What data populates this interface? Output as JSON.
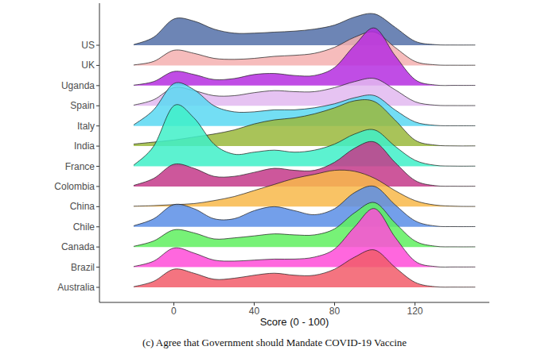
{
  "chart_data": {
    "type": "ridgeline",
    "title": "(c) Agree that Government should Mandate COVID-19 Vaccine",
    "x_label": "Score (0 - 100)",
    "x": [
      -20,
      -10,
      0,
      10,
      20,
      30,
      40,
      50,
      60,
      70,
      80,
      90,
      100,
      110,
      120,
      130,
      140,
      150
    ],
    "xlim": [
      -37,
      157
    ],
    "xticks": [
      0,
      40,
      80,
      120
    ],
    "series": [
      {
        "name": "US",
        "color": "#5470a8",
        "values": [
          0.03,
          0.4,
          1.3,
          1.2,
          0.8,
          0.6,
          0.6,
          0.65,
          0.7,
          0.8,
          1.0,
          1.4,
          1.55,
          0.9,
          0.2,
          0.03,
          0.01,
          0.01
        ]
      },
      {
        "name": "UK",
        "color": "#f5b0b0",
        "values": [
          0.02,
          0.2,
          0.75,
          0.6,
          0.35,
          0.3,
          0.35,
          0.45,
          0.5,
          0.6,
          0.9,
          1.4,
          1.65,
          0.9,
          0.2,
          0.03,
          0.01,
          0.01
        ]
      },
      {
        "name": "Uganda",
        "color": "#b52ee0",
        "values": [
          0.02,
          0.2,
          0.7,
          0.55,
          0.3,
          0.35,
          0.55,
          0.6,
          0.5,
          0.5,
          0.9,
          2.0,
          2.85,
          1.5,
          0.3,
          0.03,
          0.01,
          0.01
        ]
      },
      {
        "name": "Spain",
        "color": "#e2b8f0",
        "values": [
          0.03,
          0.3,
          0.9,
          0.75,
          0.5,
          0.5,
          0.65,
          0.75,
          0.7,
          0.7,
          0.9,
          1.2,
          1.35,
          0.8,
          0.2,
          0.03,
          0.01,
          0.01
        ]
      },
      {
        "name": "Italy",
        "color": "#5ad8f2",
        "values": [
          0.05,
          0.8,
          2.1,
          1.8,
          1.0,
          0.7,
          0.7,
          0.8,
          0.8,
          0.9,
          1.1,
          1.4,
          1.5,
          0.8,
          0.2,
          0.03,
          0.01,
          0.01
        ]
      },
      {
        "name": "India",
        "color": "#9ab83c",
        "values": [
          0.1,
          0.2,
          0.3,
          0.45,
          0.6,
          0.8,
          1.1,
          1.3,
          1.4,
          1.6,
          1.9,
          2.25,
          2.2,
          1.3,
          0.3,
          0.05,
          0.01,
          0.01
        ]
      },
      {
        "name": "France",
        "color": "#3ff0c8",
        "values": [
          0.05,
          1.0,
          3.0,
          2.4,
          1.1,
          0.6,
          0.7,
          0.8,
          0.7,
          0.8,
          1.1,
          1.6,
          1.8,
          1.0,
          0.3,
          0.05,
          0.01,
          0.01
        ]
      },
      {
        "name": "Colombia",
        "color": "#c43a8a",
        "values": [
          0.05,
          0.4,
          1.1,
          0.9,
          0.5,
          0.5,
          0.7,
          0.9,
          0.8,
          0.8,
          1.2,
          1.9,
          2.2,
          1.2,
          0.3,
          0.04,
          0.01,
          0.01
        ]
      },
      {
        "name": "China",
        "color": "#f8b84a",
        "values": [
          0.02,
          0.05,
          0.1,
          0.15,
          0.3,
          0.5,
          0.8,
          1.1,
          1.4,
          1.6,
          1.8,
          1.75,
          1.4,
          0.8,
          0.3,
          0.08,
          0.02,
          0.01
        ]
      },
      {
        "name": "Chile",
        "color": "#5b8ee6",
        "values": [
          0.05,
          0.4,
          1.1,
          0.9,
          0.4,
          0.4,
          0.8,
          1.0,
          0.8,
          0.6,
          0.9,
          1.7,
          2.0,
          1.1,
          0.3,
          0.04,
          0.01,
          0.01
        ]
      },
      {
        "name": "Canada",
        "color": "#5ff05f",
        "values": [
          0.03,
          0.3,
          0.85,
          0.7,
          0.4,
          0.45,
          0.55,
          0.65,
          0.6,
          0.6,
          0.9,
          1.7,
          2.2,
          1.2,
          0.3,
          0.04,
          0.01,
          0.01
        ]
      },
      {
        "name": "Brazil",
        "color": "#ff4cd8",
        "values": [
          0.03,
          0.3,
          0.95,
          0.7,
          0.35,
          0.3,
          0.35,
          0.4,
          0.4,
          0.5,
          0.9,
          2.0,
          2.9,
          1.5,
          0.3,
          0.03,
          0.01,
          0.01
        ]
      },
      {
        "name": "Australia",
        "color": "#f25c6a",
        "values": [
          0.03,
          0.3,
          0.9,
          0.7,
          0.4,
          0.45,
          0.6,
          0.7,
          0.6,
          0.6,
          0.9,
          1.5,
          1.85,
          1.0,
          0.25,
          0.03,
          0.01,
          0.01
        ]
      }
    ]
  }
}
